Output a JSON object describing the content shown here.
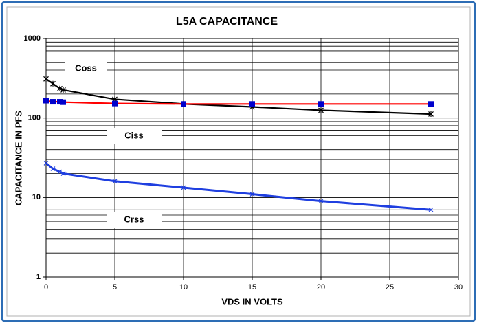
{
  "chart_data": {
    "type": "line",
    "title": "L5A CAPACITANCE",
    "x_label": "VDS IN VOLTS",
    "y_label": "CAPACITANCE IN PFS",
    "x": [
      0,
      0.5,
      1,
      1.25,
      5,
      10,
      15,
      20,
      28
    ],
    "series": [
      {
        "name": "Coss",
        "color": "#000000",
        "marker": "star",
        "marker_color": "#000000",
        "values": [
          310,
          270,
          235,
          225,
          172,
          150,
          138,
          125,
          112
        ]
      },
      {
        "name": "Ciss",
        "color": "#ff0000",
        "marker": "square",
        "marker_color": "#0000cc",
        "values": [
          165,
          160,
          160,
          158,
          152,
          150,
          150,
          150,
          150
        ]
      },
      {
        "name": "Crss",
        "color": "#1f3fe0",
        "marker": "x",
        "marker_color": "#1f3fe0",
        "values": [
          27,
          23,
          21,
          20,
          16,
          13.3,
          11,
          9,
          7
        ]
      }
    ],
    "xlim": [
      0,
      30
    ],
    "xticks": [
      0,
      5,
      10,
      15,
      20,
      25,
      30
    ],
    "ylim": [
      1,
      1000
    ],
    "yticks": [
      1,
      10,
      100,
      1000
    ],
    "log_y": true,
    "y_minor_ticks": [
      2,
      3,
      4,
      5,
      6,
      7,
      8,
      9,
      20,
      30,
      40,
      50,
      60,
      70,
      80,
      90,
      200,
      300,
      400,
      500,
      600,
      700,
      800,
      900
    ],
    "grid": true
  }
}
